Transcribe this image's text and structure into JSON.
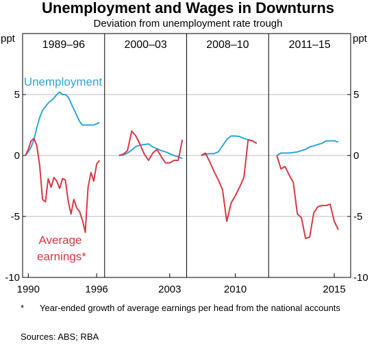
{
  "title": "Unemployment and Wages in Downturns",
  "subtitle": "Deviation from unemployment rate trough",
  "footnote": {
    "mark": "*",
    "text": "Year-ended growth of average earnings per head from the national accounts"
  },
  "sources": "Sources:   ABS; RBA",
  "colors": {
    "unemployment": "#2aa7d5",
    "earnings": "#d93743",
    "grid": "#bdbdbd",
    "frame": "#000000"
  },
  "chart_data": {
    "type": "line",
    "title": "Unemployment and Wages in Downturns",
    "subtitle": "Deviation from unemployment rate trough",
    "ylabel_left": "ppt",
    "ylabel_right": "ppt",
    "ylim": [
      -10,
      10
    ],
    "yticks": [
      -10,
      -5,
      0,
      5
    ],
    "ytick_labels": [
      "-10",
      "-5",
      "0",
      "5"
    ],
    "grid": true,
    "annotations": [
      {
        "text": "Unemployment",
        "series": "unemployment",
        "panel": 0
      },
      {
        "text": "Average earnings*",
        "lines": [
          "Average",
          "earnings*"
        ],
        "series": "earnings",
        "panel": 0
      }
    ],
    "panels": [
      {
        "label": "1989–96",
        "xlim": [
          1989.5,
          1996.7
        ],
        "xticks": [
          1990,
          1996
        ],
        "series": [
          {
            "key": "unemployment",
            "x": [
              1989.75,
              1990.0,
              1990.25,
              1990.5,
              1990.75,
              1991.0,
              1991.25,
              1991.5,
              1991.75,
              1992.0,
              1992.25,
              1992.5,
              1992.75,
              1993.0,
              1993.25,
              1993.5,
              1993.75,
              1994.0,
              1994.25,
              1994.5,
              1994.75,
              1995.0,
              1995.25,
              1995.5,
              1995.75,
              1996.0,
              1996.25
            ],
            "y": [
              0.0,
              0.3,
              0.7,
              1.3,
              2.3,
              3.1,
              3.7,
              4.0,
              4.3,
              4.5,
              4.7,
              5.0,
              5.2,
              5.0,
              5.0,
              4.8,
              4.3,
              3.8,
              3.3,
              2.8,
              2.5,
              2.5,
              2.5,
              2.5,
              2.5,
              2.6,
              2.7
            ]
          },
          {
            "key": "earnings",
            "x": [
              1989.75,
              1990.0,
              1990.25,
              1990.5,
              1990.75,
              1991.0,
              1991.25,
              1991.5,
              1991.75,
              1992.0,
              1992.25,
              1992.5,
              1992.75,
              1993.0,
              1993.25,
              1993.5,
              1993.75,
              1994.0,
              1994.25,
              1994.5,
              1994.75,
              1995.0,
              1995.25,
              1995.5,
              1995.75,
              1996.0,
              1996.25
            ],
            "y": [
              0.0,
              0.5,
              1.2,
              1.4,
              0.8,
              -0.8,
              -3.6,
              -3.8,
              -1.9,
              -2.6,
              -1.8,
              -2.1,
              -2.7,
              -1.9,
              -2.0,
              -3.7,
              -4.8,
              -3.6,
              -4.3,
              -4.6,
              -5.3,
              -6.3,
              -2.6,
              -1.4,
              -2.1,
              -0.7,
              -0.4
            ]
          }
        ]
      },
      {
        "label": "2000–03",
        "xlim": [
          1999.15,
          2004.0
        ],
        "xticks": [
          2003
        ],
        "series": [
          {
            "key": "unemployment",
            "x": [
              2000.0,
              2000.25,
              2000.5,
              2000.75,
              2001.0,
              2001.25,
              2001.5,
              2001.75,
              2002.0,
              2002.25,
              2002.5,
              2002.75,
              2003.0,
              2003.25,
              2003.5,
              2003.75
            ],
            "y": [
              0.0,
              0.05,
              0.2,
              0.45,
              0.75,
              0.85,
              0.9,
              0.95,
              0.7,
              0.55,
              0.4,
              0.3,
              0.15,
              0.0,
              -0.1,
              -0.25
            ]
          },
          {
            "key": "earnings",
            "x": [
              2000.0,
              2000.25,
              2000.5,
              2000.75,
              2001.0,
              2001.25,
              2001.5,
              2001.75,
              2002.0,
              2002.25,
              2002.5,
              2002.75,
              2003.0,
              2003.25,
              2003.5,
              2003.75
            ],
            "y": [
              0.0,
              0.1,
              0.4,
              2.0,
              1.6,
              0.9,
              0.1,
              -0.4,
              0.2,
              0.5,
              -0.1,
              -0.6,
              -0.6,
              -0.4,
              -0.4,
              1.3
            ]
          }
        ]
      },
      {
        "label": "2008–10",
        "xlim": [
          2007.15,
          2011.95
        ],
        "xticks": [
          2010
        ],
        "series": [
          {
            "key": "unemployment",
            "x": [
              2008.0,
              2008.25,
              2008.5,
              2008.75,
              2009.0,
              2009.25,
              2009.5,
              2009.75,
              2010.0,
              2010.25,
              2010.5,
              2010.75,
              2011.0,
              2011.25
            ],
            "y": [
              0.0,
              0.1,
              0.15,
              0.15,
              0.3,
              0.8,
              1.3,
              1.6,
              1.6,
              1.55,
              1.4,
              1.3,
              1.2,
              1.0
            ]
          },
          {
            "key": "earnings",
            "x": [
              2008.0,
              2008.25,
              2008.5,
              2008.75,
              2009.0,
              2009.25,
              2009.5,
              2009.75,
              2010.0,
              2010.25,
              2010.5,
              2010.75,
              2011.0,
              2011.25
            ],
            "y": [
              0.0,
              0.2,
              -0.5,
              -1.3,
              -2.0,
              -2.8,
              -5.4,
              -3.9,
              -3.3,
              -2.6,
              -1.8,
              1.3,
              1.2,
              1.0
            ]
          }
        ]
      },
      {
        "label": "2011–15",
        "xlim": [
          2011.0,
          2016.0
        ],
        "xticks": [
          2015
        ],
        "series": [
          {
            "key": "unemployment",
            "x": [
              2011.5,
              2011.75,
              2012.0,
              2012.25,
              2012.5,
              2012.75,
              2013.0,
              2013.25,
              2013.5,
              2013.75,
              2014.0,
              2014.25,
              2014.5,
              2014.75,
              2015.0,
              2015.25
            ],
            "y": [
              0.0,
              0.2,
              0.2,
              0.2,
              0.25,
              0.3,
              0.4,
              0.5,
              0.7,
              0.8,
              0.9,
              1.0,
              1.2,
              1.2,
              1.2,
              1.1
            ]
          },
          {
            "key": "earnings",
            "x": [
              2011.5,
              2011.75,
              2012.0,
              2012.25,
              2012.5,
              2012.75,
              2013.0,
              2013.25,
              2013.5,
              2013.75,
              2014.0,
              2014.25,
              2014.5,
              2014.75,
              2015.0,
              2015.25
            ],
            "y": [
              0.0,
              -1.1,
              -0.9,
              -1.6,
              -2.2,
              -4.8,
              -5.1,
              -6.8,
              -6.7,
              -4.7,
              -4.2,
              -4.1,
              -4.1,
              -4.0,
              -5.4,
              -6.1
            ]
          }
        ]
      }
    ]
  }
}
